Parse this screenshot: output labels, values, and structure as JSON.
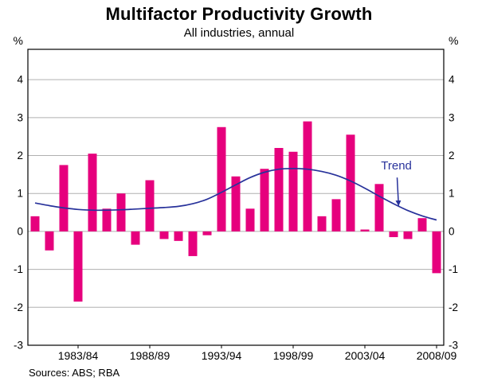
{
  "header": {
    "title": "Multifactor Productivity Growth",
    "subtitle": "All industries, annual"
  },
  "footer": {
    "sources": "Sources: ABS; RBA"
  },
  "colors": {
    "bar": "#e6007d",
    "trend": "#28329b",
    "grid": "#b0b0b0",
    "axis": "#000000"
  },
  "chart_data": {
    "type": "bar",
    "title": "Multifactor Productivity Growth",
    "subtitle": "All industries, annual",
    "unit": "%",
    "grid": true,
    "ylim": [
      -3,
      4.8
    ],
    "yticks": [
      4,
      3,
      2,
      1,
      0,
      -1,
      -2,
      -3
    ],
    "categories": [
      "1980/81",
      "1981/82",
      "1982/83",
      "1983/84",
      "1984/85",
      "1985/86",
      "1986/87",
      "1987/88",
      "1988/89",
      "1989/90",
      "1990/91",
      "1991/92",
      "1992/93",
      "1993/94",
      "1994/95",
      "1995/96",
      "1996/97",
      "1997/98",
      "1998/99",
      "1999/00",
      "2000/01",
      "2001/02",
      "2002/03",
      "2003/04",
      "2004/05",
      "2005/06",
      "2006/07",
      "2007/08",
      "2008/09"
    ],
    "xticks": {
      "indices": [
        3,
        8,
        13,
        18,
        23,
        28
      ],
      "labels": [
        "1983/84",
        "1988/89",
        "1993/94",
        "1998/99",
        "2003/04",
        "2008/09"
      ]
    },
    "series": [
      {
        "name": "Multifactor productivity growth",
        "type": "bar",
        "color": "#e6007d",
        "values": [
          0.4,
          -0.5,
          1.75,
          -1.85,
          2.05,
          0.6,
          1.0,
          -0.35,
          1.35,
          -0.2,
          -0.25,
          -0.65,
          -0.1,
          2.75,
          1.45,
          0.6,
          1.65,
          2.2,
          2.1,
          2.9,
          0.4,
          0.85,
          2.55,
          0.05,
          1.25,
          -0.15,
          -0.2,
          0.35,
          -1.1
        ]
      },
      {
        "name": "Trend",
        "type": "line",
        "color": "#28329b",
        "values": [
          0.75,
          0.68,
          0.62,
          0.58,
          0.56,
          0.56,
          0.57,
          0.59,
          0.61,
          0.63,
          0.66,
          0.73,
          0.85,
          1.03,
          1.23,
          1.42,
          1.56,
          1.64,
          1.66,
          1.64,
          1.58,
          1.48,
          1.33,
          1.14,
          0.93,
          0.73,
          0.55,
          0.41,
          0.3
        ]
      }
    ],
    "annotation": {
      "text": "Trend",
      "color": "#28329b",
      "text_at": {
        "index": 25.2,
        "value": 1.63
      },
      "arrow_from": {
        "index": 25.25,
        "value": 1.42
      },
      "arrow_to": {
        "index": 25.35,
        "value": 0.68
      }
    }
  }
}
